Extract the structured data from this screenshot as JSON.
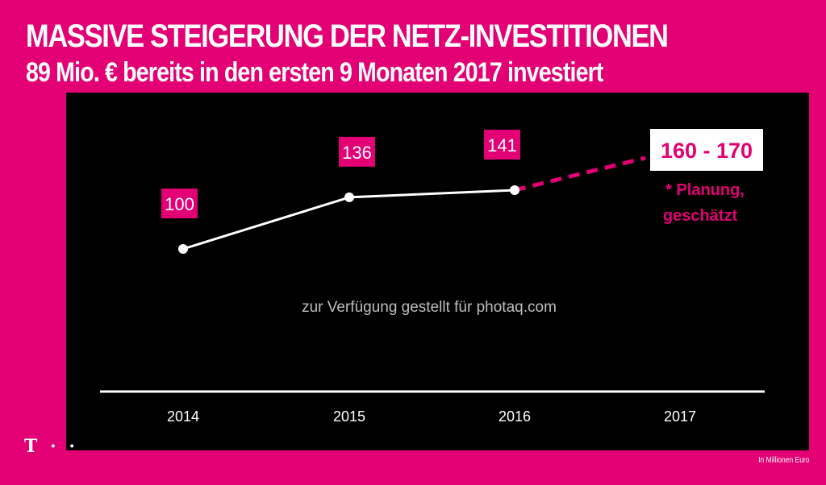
{
  "header": {
    "title": "MASSIVE STEIGERUNG DER NETZ-INVESTITIONEN",
    "subtitle": "89 Mio. € bereits in den ersten 9 Monaten 2017 investiert"
  },
  "watermark": "zur Verfügung gestellt für photaq.com",
  "footer": {
    "logo": "T · ·",
    "unit_note": "In Millionen Euro"
  },
  "colors": {
    "brand": "#e20074",
    "panel": "#000000",
    "line": "#ffffff"
  },
  "chart_data": {
    "type": "line",
    "title": "MASSIVE STEIGERUNG DER NETZ-INVESTITIONEN",
    "subtitle": "89 Mio. € bereits in den ersten 9 Monaten 2017 investiert",
    "xlabel": "",
    "ylabel": "In Millionen Euro",
    "categories": [
      "2014",
      "2015",
      "2016",
      "2017"
    ],
    "series": [
      {
        "name": "Netz-Investitionen",
        "values": [
          100,
          136,
          141,
          165
        ],
        "labels": [
          "100",
          "136",
          "141",
          "160 - 170"
        ],
        "projected_from_index": 2
      }
    ],
    "annotation": "* Planung, geschätzt",
    "ylim": [
      40,
      220
    ],
    "grid": false,
    "legend": "none"
  }
}
